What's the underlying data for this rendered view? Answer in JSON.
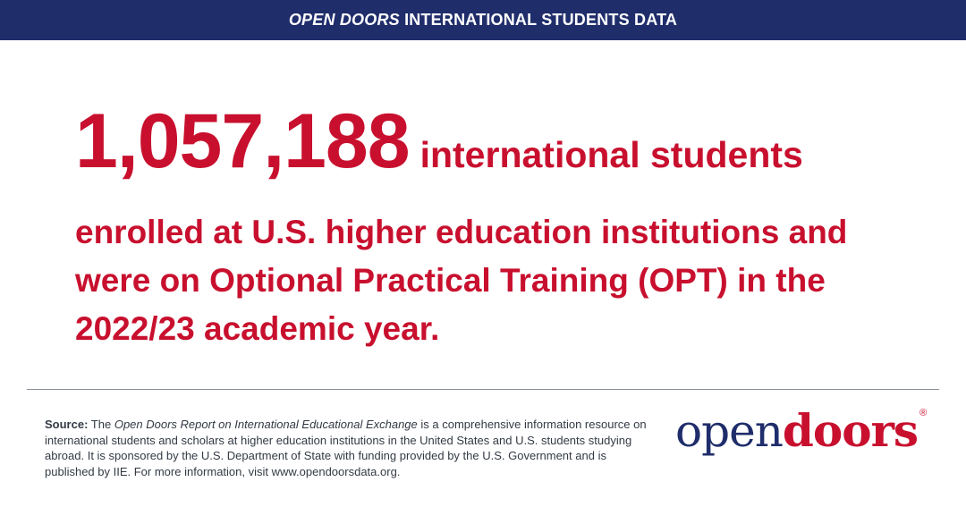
{
  "header": {
    "title_italic": "OPEN DOORS",
    "title_rest": "INTERNATIONAL STUDENTS DATA"
  },
  "headline": {
    "number": "1,057,188",
    "lines": [
      "international students",
      "enrolled at U.S. higher education institutions and",
      "were on Optional Practical Training (OPT) in the",
      "2022/23 academic year."
    ]
  },
  "source": {
    "label": "Source:",
    "intro": "The",
    "report_title": "Open Doors Report on International Educational Exchange",
    "body": "is a comprehensive information resource on international students and scholars at higher education institutions in the United States and U.S. students studying abroad. It is sponsored by the U.S. Department of State with funding provided by the U.S. Government and is published by IIE. For more information, visit www.opendoorsdata.org."
  },
  "logo": {
    "open": "open",
    "doors": "doors",
    "mark": "®"
  }
}
